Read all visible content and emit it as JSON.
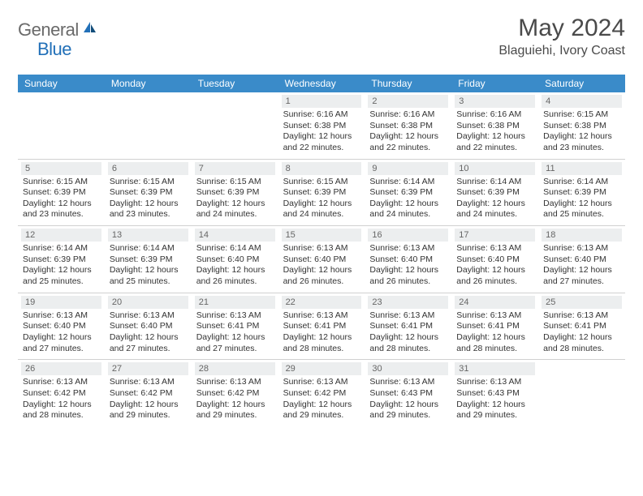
{
  "logo": {
    "general": "General",
    "blue": "Blue"
  },
  "title": "May 2024",
  "location": "Blaguiehi, Ivory Coast",
  "colors": {
    "header_bg": "#3a8bc9",
    "header_fg": "#ffffff",
    "daynum_bg": "#eceeef",
    "daynum_fg": "#666666",
    "text": "#333333",
    "divider": "#d0d0d0",
    "brand_gray": "#6a6a6a",
    "brand_blue": "#2270b8"
  },
  "weekdays": [
    "Sunday",
    "Monday",
    "Tuesday",
    "Wednesday",
    "Thursday",
    "Friday",
    "Saturday"
  ],
  "weeks": [
    [
      null,
      null,
      null,
      {
        "n": "1",
        "sr": "Sunrise: 6:16 AM",
        "ss": "Sunset: 6:38 PM",
        "d1": "Daylight: 12 hours",
        "d2": "and 22 minutes."
      },
      {
        "n": "2",
        "sr": "Sunrise: 6:16 AM",
        "ss": "Sunset: 6:38 PM",
        "d1": "Daylight: 12 hours",
        "d2": "and 22 minutes."
      },
      {
        "n": "3",
        "sr": "Sunrise: 6:16 AM",
        "ss": "Sunset: 6:38 PM",
        "d1": "Daylight: 12 hours",
        "d2": "and 22 minutes."
      },
      {
        "n": "4",
        "sr": "Sunrise: 6:15 AM",
        "ss": "Sunset: 6:38 PM",
        "d1": "Daylight: 12 hours",
        "d2": "and 23 minutes."
      }
    ],
    [
      {
        "n": "5",
        "sr": "Sunrise: 6:15 AM",
        "ss": "Sunset: 6:39 PM",
        "d1": "Daylight: 12 hours",
        "d2": "and 23 minutes."
      },
      {
        "n": "6",
        "sr": "Sunrise: 6:15 AM",
        "ss": "Sunset: 6:39 PM",
        "d1": "Daylight: 12 hours",
        "d2": "and 23 minutes."
      },
      {
        "n": "7",
        "sr": "Sunrise: 6:15 AM",
        "ss": "Sunset: 6:39 PM",
        "d1": "Daylight: 12 hours",
        "d2": "and 24 minutes."
      },
      {
        "n": "8",
        "sr": "Sunrise: 6:15 AM",
        "ss": "Sunset: 6:39 PM",
        "d1": "Daylight: 12 hours",
        "d2": "and 24 minutes."
      },
      {
        "n": "9",
        "sr": "Sunrise: 6:14 AM",
        "ss": "Sunset: 6:39 PM",
        "d1": "Daylight: 12 hours",
        "d2": "and 24 minutes."
      },
      {
        "n": "10",
        "sr": "Sunrise: 6:14 AM",
        "ss": "Sunset: 6:39 PM",
        "d1": "Daylight: 12 hours",
        "d2": "and 24 minutes."
      },
      {
        "n": "11",
        "sr": "Sunrise: 6:14 AM",
        "ss": "Sunset: 6:39 PM",
        "d1": "Daylight: 12 hours",
        "d2": "and 25 minutes."
      }
    ],
    [
      {
        "n": "12",
        "sr": "Sunrise: 6:14 AM",
        "ss": "Sunset: 6:39 PM",
        "d1": "Daylight: 12 hours",
        "d2": "and 25 minutes."
      },
      {
        "n": "13",
        "sr": "Sunrise: 6:14 AM",
        "ss": "Sunset: 6:39 PM",
        "d1": "Daylight: 12 hours",
        "d2": "and 25 minutes."
      },
      {
        "n": "14",
        "sr": "Sunrise: 6:14 AM",
        "ss": "Sunset: 6:40 PM",
        "d1": "Daylight: 12 hours",
        "d2": "and 26 minutes."
      },
      {
        "n": "15",
        "sr": "Sunrise: 6:13 AM",
        "ss": "Sunset: 6:40 PM",
        "d1": "Daylight: 12 hours",
        "d2": "and 26 minutes."
      },
      {
        "n": "16",
        "sr": "Sunrise: 6:13 AM",
        "ss": "Sunset: 6:40 PM",
        "d1": "Daylight: 12 hours",
        "d2": "and 26 minutes."
      },
      {
        "n": "17",
        "sr": "Sunrise: 6:13 AM",
        "ss": "Sunset: 6:40 PM",
        "d1": "Daylight: 12 hours",
        "d2": "and 26 minutes."
      },
      {
        "n": "18",
        "sr": "Sunrise: 6:13 AM",
        "ss": "Sunset: 6:40 PM",
        "d1": "Daylight: 12 hours",
        "d2": "and 27 minutes."
      }
    ],
    [
      {
        "n": "19",
        "sr": "Sunrise: 6:13 AM",
        "ss": "Sunset: 6:40 PM",
        "d1": "Daylight: 12 hours",
        "d2": "and 27 minutes."
      },
      {
        "n": "20",
        "sr": "Sunrise: 6:13 AM",
        "ss": "Sunset: 6:40 PM",
        "d1": "Daylight: 12 hours",
        "d2": "and 27 minutes."
      },
      {
        "n": "21",
        "sr": "Sunrise: 6:13 AM",
        "ss": "Sunset: 6:41 PM",
        "d1": "Daylight: 12 hours",
        "d2": "and 27 minutes."
      },
      {
        "n": "22",
        "sr": "Sunrise: 6:13 AM",
        "ss": "Sunset: 6:41 PM",
        "d1": "Daylight: 12 hours",
        "d2": "and 28 minutes."
      },
      {
        "n": "23",
        "sr": "Sunrise: 6:13 AM",
        "ss": "Sunset: 6:41 PM",
        "d1": "Daylight: 12 hours",
        "d2": "and 28 minutes."
      },
      {
        "n": "24",
        "sr": "Sunrise: 6:13 AM",
        "ss": "Sunset: 6:41 PM",
        "d1": "Daylight: 12 hours",
        "d2": "and 28 minutes."
      },
      {
        "n": "25",
        "sr": "Sunrise: 6:13 AM",
        "ss": "Sunset: 6:41 PM",
        "d1": "Daylight: 12 hours",
        "d2": "and 28 minutes."
      }
    ],
    [
      {
        "n": "26",
        "sr": "Sunrise: 6:13 AM",
        "ss": "Sunset: 6:42 PM",
        "d1": "Daylight: 12 hours",
        "d2": "and 28 minutes."
      },
      {
        "n": "27",
        "sr": "Sunrise: 6:13 AM",
        "ss": "Sunset: 6:42 PM",
        "d1": "Daylight: 12 hours",
        "d2": "and 29 minutes."
      },
      {
        "n": "28",
        "sr": "Sunrise: 6:13 AM",
        "ss": "Sunset: 6:42 PM",
        "d1": "Daylight: 12 hours",
        "d2": "and 29 minutes."
      },
      {
        "n": "29",
        "sr": "Sunrise: 6:13 AM",
        "ss": "Sunset: 6:42 PM",
        "d1": "Daylight: 12 hours",
        "d2": "and 29 minutes."
      },
      {
        "n": "30",
        "sr": "Sunrise: 6:13 AM",
        "ss": "Sunset: 6:43 PM",
        "d1": "Daylight: 12 hours",
        "d2": "and 29 minutes."
      },
      {
        "n": "31",
        "sr": "Sunrise: 6:13 AM",
        "ss": "Sunset: 6:43 PM",
        "d1": "Daylight: 12 hours",
        "d2": "and 29 minutes."
      },
      null
    ]
  ]
}
